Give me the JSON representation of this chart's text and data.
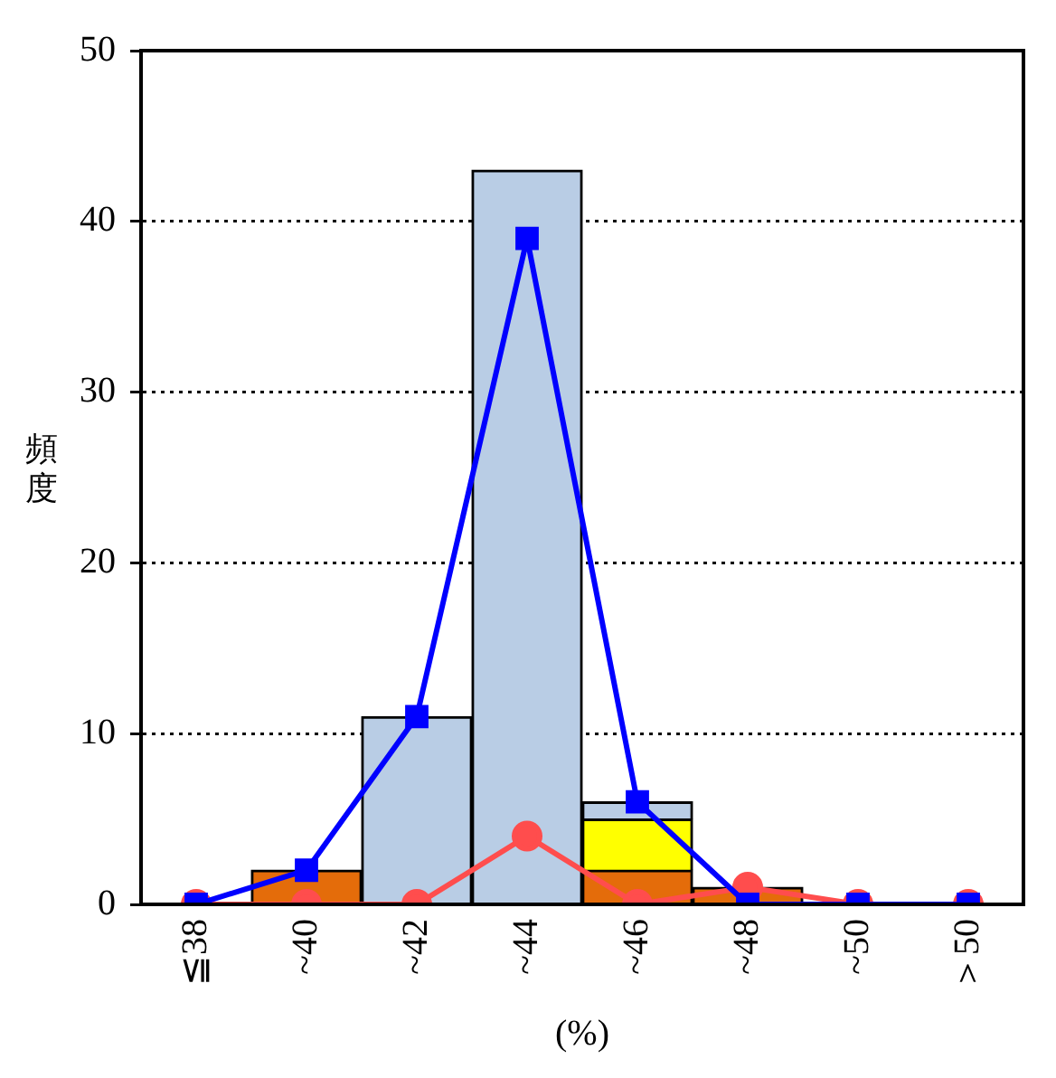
{
  "chart_data": {
    "type": "bar",
    "stacked": true,
    "xlabel": "(%)",
    "ylabel": "頻度",
    "categories": [
      "≦38",
      "~40",
      "~42",
      "~44",
      "~46",
      "~48",
      "~50",
      "＞50"
    ],
    "series": [
      {
        "color": "#e46c0a",
        "values": [
          0,
          2,
          0,
          0,
          2,
          1,
          0,
          0
        ]
      },
      {
        "color": "#ffff00",
        "values": [
          0,
          0,
          0,
          0,
          3,
          0,
          0,
          0
        ]
      },
      {
        "color": "#b9cde5",
        "values": [
          0,
          0,
          11,
          43,
          1,
          0,
          0,
          0
        ]
      },
      {
        "type": "line",
        "color": "#0000ff",
        "marker": "square",
        "values": [
          0,
          2,
          11,
          39,
          6,
          0,
          0,
          0
        ]
      },
      {
        "type": "line",
        "color": "#ff4d4d",
        "marker": "circle",
        "values": [
          0,
          0,
          0,
          4,
          0,
          1,
          0,
          0
        ]
      }
    ],
    "ylim": [
      0,
      50
    ],
    "yticks": [
      0,
      10,
      20,
      30,
      40,
      50
    ],
    "grid": "y",
    "legend": false
  }
}
